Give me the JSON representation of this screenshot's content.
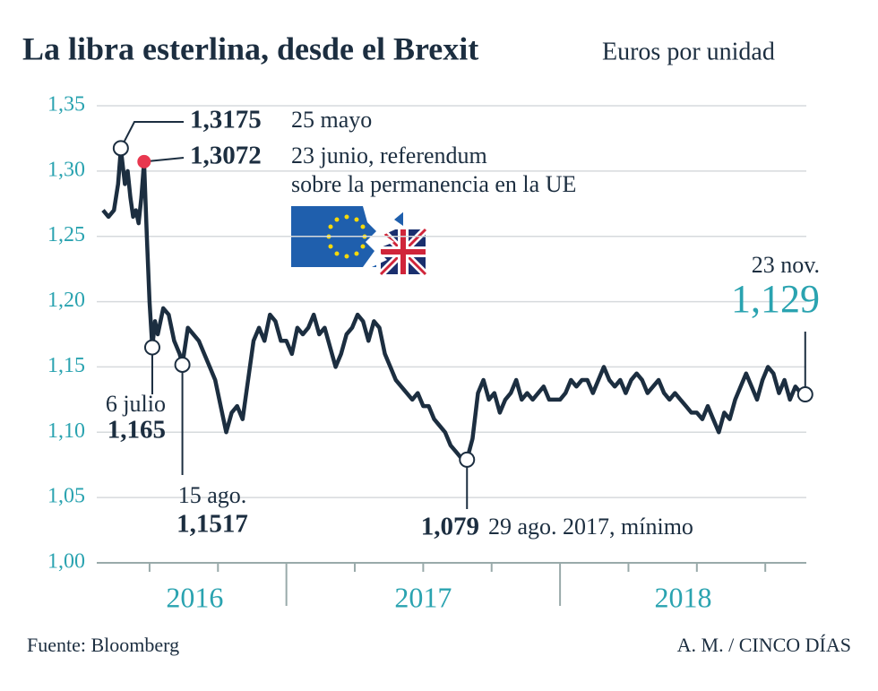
{
  "chart_data": {
    "type": "line",
    "title": "La libra esterlina, desde el Brexit",
    "subtitle": "Euros por unidad",
    "source": "Fuente: Bloomberg",
    "credit": "A. M. / CINCO DÍAS",
    "color": "#1c2e40",
    "grid": true,
    "xlim": [
      2016.33,
      2018.9
    ],
    "ylim": [
      1.0,
      1.35
    ],
    "yticks": [
      {
        "value": 1.0,
        "label": "1,00"
      },
      {
        "value": 1.05,
        "label": "1,05"
      },
      {
        "value": 1.1,
        "label": "1,10"
      },
      {
        "value": 1.15,
        "label": "1,15"
      },
      {
        "value": 1.2,
        "label": "1,20"
      },
      {
        "value": 1.25,
        "label": "1,25"
      },
      {
        "value": 1.3,
        "label": "1,30"
      },
      {
        "value": 1.35,
        "label": "1,35"
      }
    ],
    "xticks": [
      2016.5,
      2016.75,
      2017,
      2017.25,
      2017.5,
      2017.75,
      2018,
      2018.25,
      2018.5,
      2018.75
    ],
    "year_labels": [
      {
        "value": 2016,
        "label": "2016"
      },
      {
        "value": 2017,
        "label": "2017"
      },
      {
        "value": 2018,
        "label": "2018"
      }
    ],
    "x": [
      2016.33,
      2016.35,
      2016.37,
      2016.385,
      2016.395,
      2016.41,
      2016.42,
      2016.43,
      2016.44,
      2016.45,
      2016.46,
      2016.47,
      2016.48,
      2016.49,
      2016.5,
      2016.51,
      2016.52,
      2016.53,
      2016.55,
      2016.57,
      2016.59,
      2016.61,
      2016.62,
      2016.64,
      2016.66,
      2016.68,
      2016.7,
      2016.72,
      2016.74,
      2016.76,
      2016.78,
      2016.8,
      2016.82,
      2016.84,
      2016.86,
      2016.88,
      2016.9,
      2016.92,
      2016.94,
      2016.96,
      2016.98,
      2017.0,
      2017.02,
      2017.04,
      2017.06,
      2017.08,
      2017.1,
      2017.12,
      2017.14,
      2017.16,
      2017.18,
      2017.2,
      2017.22,
      2017.24,
      2017.26,
      2017.28,
      2017.3,
      2017.32,
      2017.34,
      2017.36,
      2017.38,
      2017.4,
      2017.42,
      2017.44,
      2017.46,
      2017.48,
      2017.5,
      2017.52,
      2017.54,
      2017.56,
      2017.58,
      2017.6,
      2017.62,
      2017.64,
      2017.66,
      2017.68,
      2017.7,
      2017.72,
      2017.74,
      2017.76,
      2017.78,
      2017.8,
      2017.82,
      2017.84,
      2017.86,
      2017.88,
      2017.9,
      2017.92,
      2017.94,
      2017.96,
      2017.98,
      2018.0,
      2018.02,
      2018.04,
      2018.06,
      2018.08,
      2018.1,
      2018.12,
      2018.14,
      2018.16,
      2018.18,
      2018.2,
      2018.22,
      2018.24,
      2018.26,
      2018.28,
      2018.3,
      2018.32,
      2018.34,
      2018.36,
      2018.38,
      2018.4,
      2018.42,
      2018.44,
      2018.46,
      2018.48,
      2018.5,
      2018.52,
      2018.54,
      2018.56,
      2018.58,
      2018.6,
      2018.62,
      2018.64,
      2018.66,
      2018.68,
      2018.7,
      2018.72,
      2018.74,
      2018.76,
      2018.78,
      2018.8,
      2018.82,
      2018.84,
      2018.86,
      2018.88,
      2018.896
    ],
    "values": [
      1.27,
      1.265,
      1.27,
      1.29,
      1.317,
      1.29,
      1.3,
      1.28,
      1.265,
      1.27,
      1.26,
      1.28,
      1.307,
      1.25,
      1.2,
      1.165,
      1.185,
      1.175,
      1.195,
      1.19,
      1.17,
      1.16,
      1.152,
      1.18,
      1.175,
      1.17,
      1.16,
      1.15,
      1.14,
      1.12,
      1.1,
      1.115,
      1.12,
      1.11,
      1.14,
      1.17,
      1.18,
      1.17,
      1.19,
      1.185,
      1.17,
      1.17,
      1.16,
      1.18,
      1.175,
      1.18,
      1.19,
      1.175,
      1.18,
      1.165,
      1.15,
      1.16,
      1.175,
      1.18,
      1.19,
      1.185,
      1.17,
      1.185,
      1.18,
      1.16,
      1.15,
      1.14,
      1.135,
      1.13,
      1.125,
      1.13,
      1.12,
      1.12,
      1.11,
      1.105,
      1.1,
      1.09,
      1.085,
      1.08,
      1.079,
      1.095,
      1.13,
      1.14,
      1.125,
      1.13,
      1.115,
      1.125,
      1.13,
      1.14,
      1.125,
      1.13,
      1.125,
      1.13,
      1.135,
      1.125,
      1.125,
      1.125,
      1.13,
      1.14,
      1.135,
      1.14,
      1.14,
      1.13,
      1.14,
      1.15,
      1.14,
      1.135,
      1.14,
      1.13,
      1.14,
      1.145,
      1.14,
      1.13,
      1.135,
      1.14,
      1.13,
      1.125,
      1.13,
      1.125,
      1.12,
      1.115,
      1.115,
      1.11,
      1.12,
      1.11,
      1.1,
      1.115,
      1.11,
      1.125,
      1.135,
      1.145,
      1.135,
      1.125,
      1.14,
      1.15,
      1.145,
      1.13,
      1.14,
      1.125,
      1.135,
      1.13,
      1.129
    ],
    "annotations": [
      {
        "x": 2016.395,
        "y": 1.3175,
        "label": "1,3175",
        "text": [
          "25 mayo"
        ]
      },
      {
        "x": 2016.48,
        "y": 1.3072,
        "label": "1,3072",
        "text": [
          "23 junio, referendum",
          "sobre la permanencia en la UE"
        ],
        "color": "#e8384f"
      },
      {
        "x": 2016.51,
        "y": 1.165,
        "label": "1,165",
        "text": [
          "6 julio"
        ]
      },
      {
        "x": 2016.62,
        "y": 1.1517,
        "label": "1,1517",
        "text": [
          "15 ago."
        ]
      },
      {
        "x": 2017.66,
        "y": 1.079,
        "label": "1,079",
        "text": [
          "29 ago. 2017, mínimo"
        ]
      },
      {
        "x": 2018.896,
        "y": 1.129,
        "label": "1,129",
        "text": [
          "23 nov."
        ]
      }
    ]
  }
}
